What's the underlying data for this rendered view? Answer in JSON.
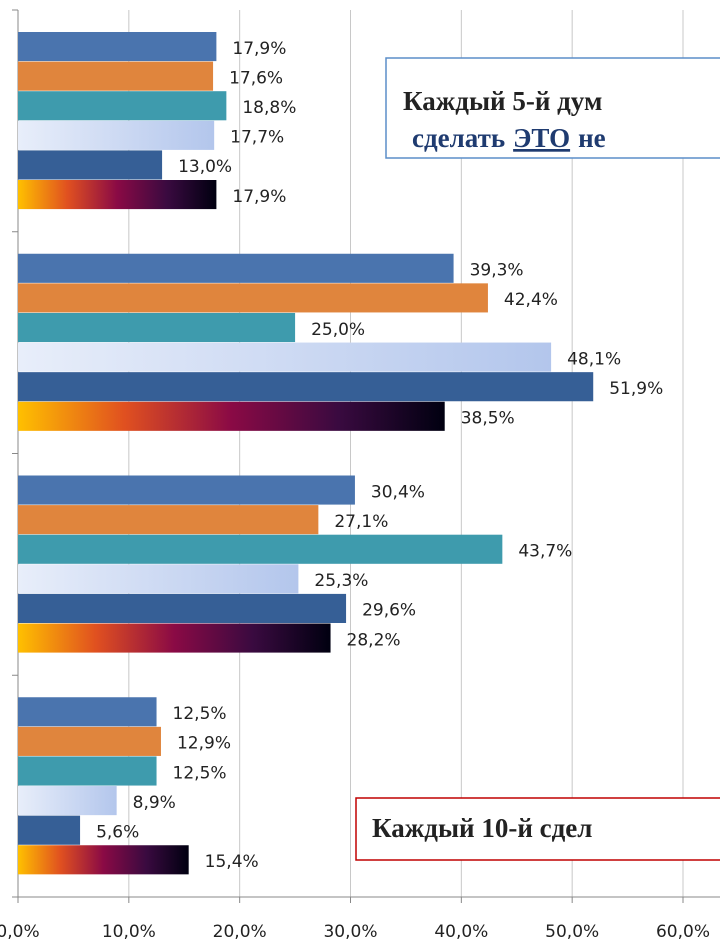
{
  "chart_data": {
    "type": "bar",
    "orientation": "horizontal",
    "categories": [
      null,
      null,
      null,
      null
    ],
    "series": [
      {
        "color": "#4a74ae",
        "values": [
          17.9,
          39.3,
          30.4,
          12.5
        ],
        "value_labels": [
          "17,9%",
          "39,3%",
          "30,4%",
          "12,5%"
        ]
      },
      {
        "color": "#e0853d",
        "values": [
          17.6,
          42.4,
          27.1,
          12.9
        ],
        "value_labels": [
          "17,6%",
          "42,4%",
          "27,1%",
          "12,9%"
        ]
      },
      {
        "color": "#3e9bad",
        "values": [
          18.8,
          25.0,
          43.7,
          12.5
        ],
        "value_labels": [
          "18,8%",
          "25,0%",
          "43,7%",
          "12,5%"
        ]
      },
      {
        "color": [
          "#e8eefa",
          "#b3c6ec"
        ],
        "values": [
          17.7,
          48.1,
          25.3,
          8.9
        ],
        "value_labels": [
          "17,7%",
          "48,1%",
          "25,3%",
          "8,9%"
        ]
      },
      {
        "color": "#365f96",
        "values": [
          13.0,
          51.9,
          29.6,
          5.6
        ],
        "value_labels": [
          "13,0%",
          "51,9%",
          "29,6%",
          "5,6%"
        ]
      },
      {
        "color": [
          "#ffc000",
          "#e05020",
          "#8a0a45",
          "#3a0a40",
          "#000010"
        ],
        "values": [
          17.9,
          38.5,
          28.2,
          15.4
        ],
        "value_labels": [
          "17,9%",
          "38,5%",
          "28,2%",
          "15,4%"
        ]
      }
    ],
    "xlim": [
      0,
      60
    ],
    "xticks": [
      {
        "value": 0,
        "label": "0,0%"
      },
      {
        "value": 10,
        "label": "10,0%"
      },
      {
        "value": 20,
        "label": "20,0%"
      },
      {
        "value": 30,
        "label": "30,0%"
      },
      {
        "value": 40,
        "label": "40,0%"
      },
      {
        "value": 50,
        "label": "50,0%"
      },
      {
        "value": 60,
        "label": "60,0%"
      }
    ],
    "grid": true,
    "annotations": [
      {
        "line1": "Каждый 5-й  дум",
        "line2": [
          "сделать",
          "ЭТО",
          "не"
        ],
        "color": "#1f3b70",
        "border": "#5b8ec9"
      },
      {
        "line1": "Каждый 10-й сдел",
        "color": "#c00000",
        "border": "#c00000"
      }
    ]
  }
}
